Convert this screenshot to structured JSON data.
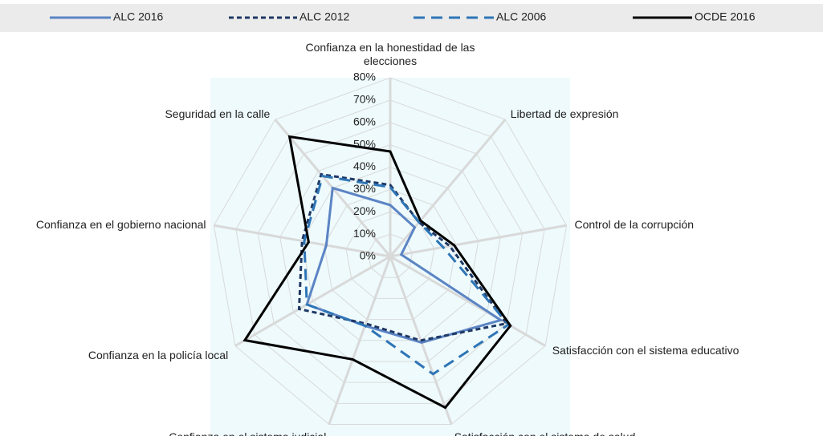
{
  "chart_data": {
    "type": "radar",
    "categories": [
      "Confianza en la honestidad de las elecciones",
      "Libertad de expresión",
      "Control de la corrupción",
      "Satisfacción con el sistema educativo",
      "Satisfacción con el sistema de salud",
      "Confianza en el sistema judicial",
      "Confianza en la policía local",
      "Confianza en el gobierno nacional",
      "Seguridad en la calle"
    ],
    "series": [
      {
        "name": "ALC 2016",
        "color": "#5b84c4",
        "dash": "solid",
        "values": [
          23,
          17,
          5,
          57,
          41,
          33,
          43,
          29,
          40
        ]
      },
      {
        "name": "ALC 2012",
        "color": "#1f3864",
        "dash": "short",
        "values": [
          32,
          20,
          27,
          60,
          40,
          32,
          47,
          40,
          48
        ]
      },
      {
        "name": "ALC 2006",
        "color": "#2e75b6",
        "dash": "long",
        "values": [
          31,
          20,
          24,
          61,
          56,
          33,
          43,
          39,
          47
        ]
      },
      {
        "name": "OCDE 2016",
        "color": "#000000",
        "dash": "solid",
        "values": [
          47,
          21,
          29,
          62,
          72,
          49,
          75,
          37,
          70
        ]
      }
    ],
    "ylim": [
      0,
      80
    ],
    "yticks": [
      {
        "value": 0,
        "label": "0%"
      },
      {
        "value": 10,
        "label": "10%"
      },
      {
        "value": 20,
        "label": "20%"
      },
      {
        "value": 30,
        "label": "30%"
      },
      {
        "value": 40,
        "label": "40%"
      },
      {
        "value": 50,
        "label": "50%"
      },
      {
        "value": 60,
        "label": "60%"
      },
      {
        "value": 70,
        "label": "70%"
      },
      {
        "value": 80,
        "label": "80%"
      }
    ],
    "legend": "top",
    "grid": true
  }
}
